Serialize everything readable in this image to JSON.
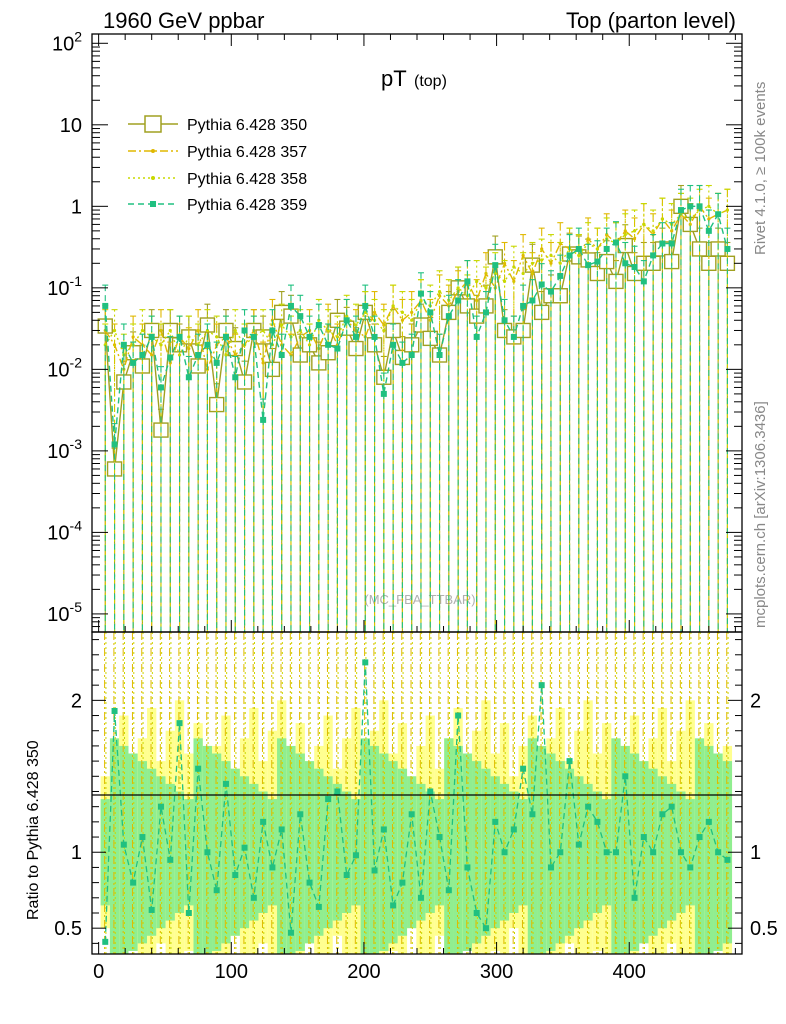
{
  "header": {
    "left": "1960 GeV ppbar",
    "right": "Top (parton level)"
  },
  "side_labels": {
    "upper": "Rivet 4.1.0, ≥ 100k events",
    "lower": "mcplots.cern.ch [arXiv:1306.3436]"
  },
  "watermark": "(MC_FBA_TTBAR)",
  "colors": {
    "s350": "#a0a020",
    "s357": "#e0b800",
    "s358": "#c8d800",
    "s359": "#20c080",
    "band_yellow": "#ffff90",
    "band_green": "#90ee90"
  },
  "chart_data": {
    "type": "line",
    "title": "pT",
    "title_sub": "(top)",
    "xlabel": "",
    "ylabel_ratio": "Ratio to Pythia 6.428 350",
    "xlim": [
      -5,
      485
    ],
    "ylim": [
      6e-06,
      130
    ],
    "ylog": true,
    "ratio_ylim": [
      0.33,
      2.45
    ],
    "x_ticks": [
      "0",
      "100",
      "200",
      "300",
      "400"
    ],
    "y_ticks": [
      "10^2",
      "10",
      "1",
      "10^-1",
      "10^-2",
      "10^-3",
      "10^-4",
      "10^-5"
    ],
    "ratio_ticks": [
      "2",
      "1",
      "0.5"
    ],
    "x": [
      5,
      12,
      19,
      26,
      33,
      40,
      47,
      54,
      61,
      68,
      75,
      82,
      89,
      96,
      103,
      110,
      117,
      124,
      131,
      138,
      145,
      152,
      159,
      166,
      173,
      180,
      187,
      194,
      201,
      208,
      215,
      222,
      229,
      236,
      243,
      250,
      257,
      264,
      271,
      278,
      285,
      292,
      299,
      306,
      313,
      320,
      327,
      334,
      341,
      348,
      355,
      362,
      369,
      376,
      383,
      390,
      397,
      404,
      411,
      418,
      425,
      432,
      439,
      446,
      453,
      460,
      467,
      474
    ],
    "series": [
      {
        "name": "Pythia 6.428 350",
        "style": "solid-open-square",
        "values": [
          0.034,
          0.0006,
          0.007,
          0.016,
          0.011,
          0.03,
          0.0018,
          0.03,
          0.02,
          0.025,
          0.011,
          0.035,
          0.0037,
          0.03,
          0.018,
          0.007,
          0.03,
          0.025,
          0.01,
          0.05,
          0.045,
          0.015,
          0.02,
          0.012,
          0.016,
          0.04,
          0.032,
          0.018,
          0.05,
          0.02,
          0.008,
          0.03,
          0.014,
          0.02,
          0.035,
          0.024,
          0.015,
          0.05,
          0.1,
          0.06,
          0.045,
          0.06,
          0.24,
          0.03,
          0.025,
          0.03,
          0.19,
          0.05,
          0.08,
          0.08,
          0.26,
          0.24,
          0.22,
          0.15,
          0.21,
          0.12,
          0.33,
          0.15,
          0.2,
          0.2,
          0.3,
          0.21,
          1.0,
          0.6,
          0.3,
          0.2,
          0.3,
          0.2
        ]
      },
      {
        "name": "Pythia 6.428 357",
        "style": "dashdot",
        "values": [
          0.03,
          0.02,
          0.01,
          0.025,
          0.02,
          0.015,
          0.03,
          0.012,
          0.025,
          0.018,
          0.03,
          0.01,
          0.02,
          0.025,
          0.015,
          0.02,
          0.03,
          0.012,
          0.04,
          0.02,
          0.015,
          0.025,
          0.03,
          0.018,
          0.035,
          0.02,
          0.04,
          0.03,
          0.025,
          0.05,
          0.035,
          0.06,
          0.04,
          0.05,
          0.07,
          0.04,
          0.08,
          0.06,
          0.09,
          0.12,
          0.07,
          0.15,
          0.1,
          0.2,
          0.12,
          0.25,
          0.15,
          0.3,
          0.2,
          0.35,
          0.3,
          0.25,
          0.4,
          0.3,
          0.45,
          0.35,
          0.5,
          0.4,
          0.6,
          0.45,
          0.7,
          0.5,
          0.8,
          0.6,
          1.0,
          0.7,
          0.8,
          0.9
        ]
      },
      {
        "name": "Pythia 6.428 358",
        "style": "dotted",
        "values": [
          0.02,
          0.03,
          0.015,
          0.02,
          0.03,
          0.025,
          0.02,
          0.03,
          0.015,
          0.025,
          0.02,
          0.03,
          0.025,
          0.015,
          0.03,
          0.02,
          0.025,
          0.03,
          0.02,
          0.035,
          0.025,
          0.03,
          0.02,
          0.04,
          0.03,
          0.025,
          0.045,
          0.035,
          0.05,
          0.04,
          0.03,
          0.06,
          0.05,
          0.04,
          0.07,
          0.06,
          0.09,
          0.07,
          0.1,
          0.08,
          0.12,
          0.1,
          0.15,
          0.12,
          0.18,
          0.15,
          0.2,
          0.22,
          0.25,
          0.2,
          0.3,
          0.25,
          0.35,
          0.3,
          0.4,
          0.35,
          0.45,
          0.5,
          0.6,
          0.5,
          0.7,
          0.6,
          0.8,
          0.7,
          0.9,
          1.0,
          0.8,
          0.9
        ]
      },
      {
        "name": "Pythia 6.428 359",
        "style": "dashed-filled-square",
        "values": [
          0.06,
          0.0012,
          0.02,
          0.012,
          0.015,
          0.025,
          0.006,
          0.014,
          0.025,
          0.008,
          0.015,
          0.02,
          0.012,
          0.025,
          0.008,
          0.03,
          0.025,
          0.0024,
          0.03,
          0.015,
          0.06,
          0.045,
          0.025,
          0.035,
          0.02,
          0.018,
          0.04,
          0.025,
          0.06,
          0.025,
          0.005,
          0.02,
          0.012,
          0.015,
          0.085,
          0.05,
          0.015,
          0.045,
          0.07,
          0.12,
          0.025,
          0.05,
          0.19,
          0.04,
          0.025,
          0.06,
          0.07,
          0.11,
          0.09,
          0.14,
          0.25,
          0.3,
          0.19,
          0.21,
          0.3,
          0.36,
          0.2,
          0.18,
          0.12,
          0.25,
          0.35,
          0.35,
          0.9,
          1.0,
          1.0,
          0.5,
          0.8,
          0.3
        ]
      }
    ],
    "ratio_359": [
      0.41,
      1.93,
      1.05,
      0.8,
      1.1,
      0.62,
      1.3,
      0.95,
      1.85,
      0.6,
      1.55,
      1.0,
      0.75,
      1.45,
      0.85,
      1.03,
      0.7,
      1.2,
      0.9,
      1.15,
      0.47,
      1.25,
      0.8,
      0.64,
      1.35,
      1.4,
      0.85,
      0.98,
      2.25,
      0.88,
      1.15,
      0.65,
      0.8,
      1.25,
      0.7,
      1.4,
      1.1,
      0.75,
      1.9,
      0.9,
      0.6,
      0.5,
      1.2,
      1.0,
      1.15,
      1.55,
      1.25,
      2.1,
      0.9,
      1.0,
      1.6,
      1.05,
      1.3,
      1.2,
      1.0,
      1.0,
      1.5,
      0.7,
      1.1,
      1.0,
      1.25,
      1.3,
      1.0,
      0.9,
      1.1,
      1.2,
      1.0,
      0.95
    ]
  }
}
